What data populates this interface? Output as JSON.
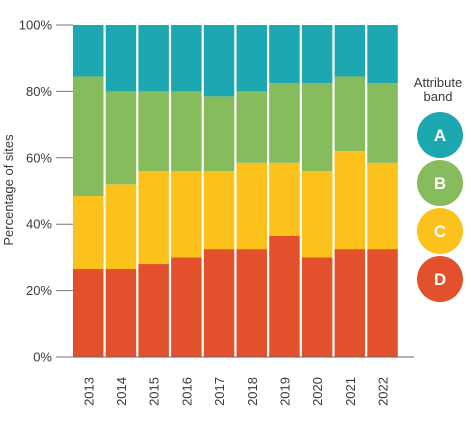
{
  "chart_data": {
    "type": "bar",
    "stacked": true,
    "percent": true,
    "categories": [
      "2013",
      "2014",
      "2015",
      "2016",
      "2017",
      "2018",
      "2019",
      "2020",
      "2021",
      "2022"
    ],
    "ylabel": "Percentage of sites",
    "ylim": [
      0,
      100
    ],
    "yticks": [
      "0%",
      "20%",
      "40%",
      "60%",
      "80%",
      "100%"
    ],
    "legend": {
      "title_lines": [
        "Attribute",
        "band"
      ],
      "placement": "right"
    },
    "series": [
      {
        "name": "D",
        "color": "#e2512b",
        "values": [
          26.5,
          26.5,
          28,
          30,
          32.5,
          32.5,
          36.5,
          30,
          32.5,
          32.5
        ]
      },
      {
        "name": "C",
        "color": "#fcc11b",
        "values": [
          22,
          25.5,
          28,
          26,
          23.5,
          26,
          22,
          26,
          29.5,
          26
        ]
      },
      {
        "name": "B",
        "color": "#86bc5b",
        "values": [
          36,
          28,
          24,
          24,
          22.5,
          21.5,
          24,
          26.5,
          22.5,
          24
        ]
      },
      {
        "name": "A",
        "color": "#1ca7b1",
        "values": [
          15.5,
          20,
          20,
          20,
          21.5,
          20,
          17.5,
          17.5,
          15.5,
          17.5
        ]
      }
    ],
    "grid": false
  }
}
